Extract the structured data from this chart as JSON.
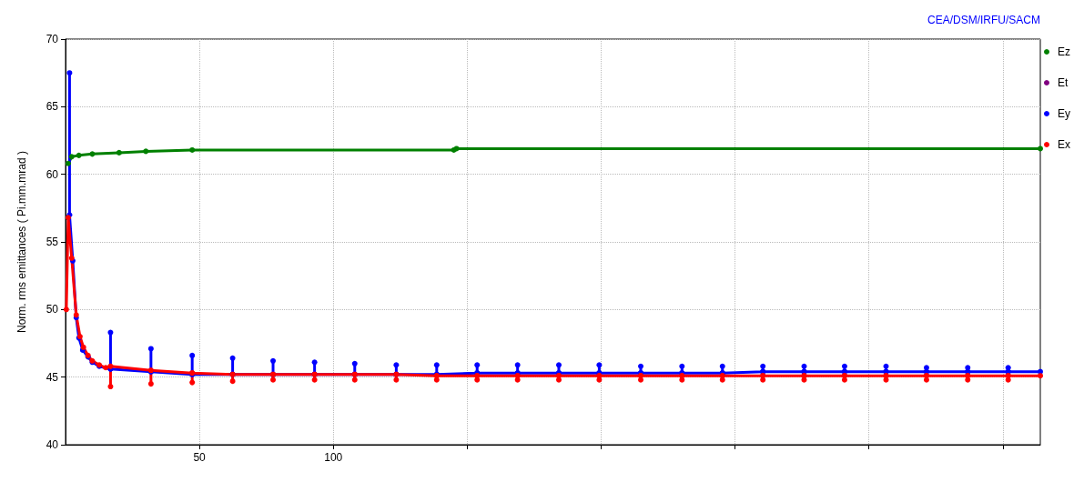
{
  "chart_data": {
    "type": "line",
    "ylabel": "Norm. rms emittances ( Pi.mm.mrad )",
    "annotations": [
      "CEA/DSM/IRFU/SACM"
    ],
    "xlim": [
      0,
      364
    ],
    "xticks": [
      50,
      100,
      {
        "value": 150,
        "label": null
      },
      {
        "value": 200,
        "label": null
      },
      {
        "value": 250,
        "label": null
      },
      {
        "value": 300,
        "label": null
      },
      {
        "value": 350,
        "label": null
      }
    ],
    "ylim": [
      40,
      70
    ],
    "yticks": [
      40,
      45,
      50,
      55,
      60,
      65,
      70
    ],
    "grid": true,
    "legend": "right",
    "marker": "circle",
    "line_style": "solid",
    "series": [
      {
        "name": "Ez",
        "color": "#008000",
        "x": [
          1,
          2.3,
          5,
          10,
          20,
          30,
          47.3,
          145,
          146,
          364
        ],
        "values": [
          60.8,
          61.3,
          61.4,
          61.5,
          61.6,
          61.7,
          61.8,
          61.8,
          61.9,
          61.9
        ]
      },
      {
        "name": "Et",
        "color": "#800080"
      },
      {
        "name": "Ey",
        "color": "#0000ff",
        "x": [
          1.5,
          1.5,
          2.7,
          4,
          5,
          6.4,
          8.4,
          10,
          12.6,
          16.8,
          16.8,
          16.8,
          31.9,
          31.9,
          31.9,
          47.3,
          47.3,
          47.3,
          62.4,
          62.4,
          62.4,
          77.5,
          77.5,
          77.5,
          93,
          93,
          93,
          108,
          108,
          108,
          123.5,
          123.5,
          123.5,
          138.6,
          138.6,
          138.6,
          153.7,
          153.7,
          153.7,
          168.8,
          168.8,
          168.8,
          184.2,
          184.2,
          184.2,
          199.3,
          199.3,
          199.3,
          214.8,
          214.8,
          214.8,
          230.2,
          230.2,
          230.2,
          245.3,
          245.3,
          245.3,
          260.4,
          260.4,
          260.4,
          275.8,
          275.8,
          275.8,
          290.9,
          290.9,
          290.9,
          306.4,
          306.4,
          306.4,
          321.5,
          321.5,
          321.5,
          336.9,
          336.9,
          336.9,
          352,
          352,
          352,
          364
        ],
        "values": [
          67.5,
          57,
          53.6,
          49.4,
          47.9,
          47.0,
          46.5,
          46.1,
          45.8,
          45.6,
          48.3,
          45.6,
          45.4,
          47.1,
          45.4,
          45.2,
          46.6,
          45.2,
          45.2,
          46.4,
          45.2,
          45.2,
          46.2,
          45.2,
          45.2,
          46.1,
          45.2,
          45.2,
          46.0,
          45.2,
          45.2,
          45.9,
          45.2,
          45.2,
          45.9,
          45.2,
          45.3,
          45.9,
          45.3,
          45.3,
          45.9,
          45.3,
          45.3,
          45.9,
          45.3,
          45.3,
          45.9,
          45.3,
          45.3,
          45.8,
          45.3,
          45.3,
          45.8,
          45.3,
          45.3,
          45.8,
          45.3,
          45.4,
          45.8,
          45.4,
          45.4,
          45.8,
          45.4,
          45.4,
          45.8,
          45.4,
          45.4,
          45.8,
          45.4,
          45.4,
          45.7,
          45.4,
          45.4,
          45.7,
          45.4,
          45.4,
          45.7,
          45.4,
          45.4
        ]
      },
      {
        "name": "Ex",
        "color": "#ff0000",
        "x": [
          0.3,
          1,
          2.3,
          4,
          5.4,
          6.7,
          8.4,
          10,
          12.6,
          15,
          16.8,
          16.8,
          16.8,
          31.9,
          31.9,
          31.9,
          47.3,
          47.3,
          47.3,
          62.4,
          62.4,
          62.4,
          77.5,
          77.5,
          77.5,
          93,
          93,
          93,
          108,
          108,
          108,
          123.5,
          123.5,
          123.5,
          138.6,
          138.6,
          138.6,
          153.7,
          153.7,
          153.7,
          168.8,
          168.8,
          168.8,
          184.2,
          184.2,
          184.2,
          199.3,
          199.3,
          199.3,
          214.8,
          214.8,
          214.8,
          230.2,
          230.2,
          230.2,
          245.3,
          245.3,
          245.3,
          260.4,
          260.4,
          260.4,
          275.8,
          275.8,
          275.8,
          290.9,
          290.9,
          290.9,
          306.4,
          306.4,
          306.4,
          321.5,
          321.5,
          321.5,
          336.9,
          336.9,
          336.9,
          352,
          352,
          352,
          364
        ],
        "values": [
          50,
          56.8,
          53.8,
          49.6,
          48.0,
          47.2,
          46.6,
          46.2,
          45.9,
          45.7,
          45.8,
          44.3,
          45.8,
          45.5,
          44.5,
          45.5,
          45.3,
          44.6,
          45.3,
          45.2,
          44.7,
          45.2,
          45.2,
          44.8,
          45.2,
          45.2,
          44.8,
          45.2,
          45.2,
          44.8,
          45.2,
          45.2,
          44.8,
          45.2,
          45.1,
          44.8,
          45.1,
          45.1,
          44.8,
          45.1,
          45.1,
          44.8,
          45.1,
          45.1,
          44.8,
          45.1,
          45.1,
          44.8,
          45.1,
          45.1,
          44.8,
          45.1,
          45.1,
          44.8,
          45.1,
          45.1,
          44.8,
          45.1,
          45.1,
          44.8,
          45.1,
          45.1,
          44.8,
          45.1,
          45.1,
          44.8,
          45.1,
          45.1,
          44.8,
          45.1,
          45.1,
          44.8,
          45.1,
          45.1,
          44.8,
          45.1,
          45.1,
          44.8,
          45.1,
          45.1
        ]
      }
    ]
  }
}
